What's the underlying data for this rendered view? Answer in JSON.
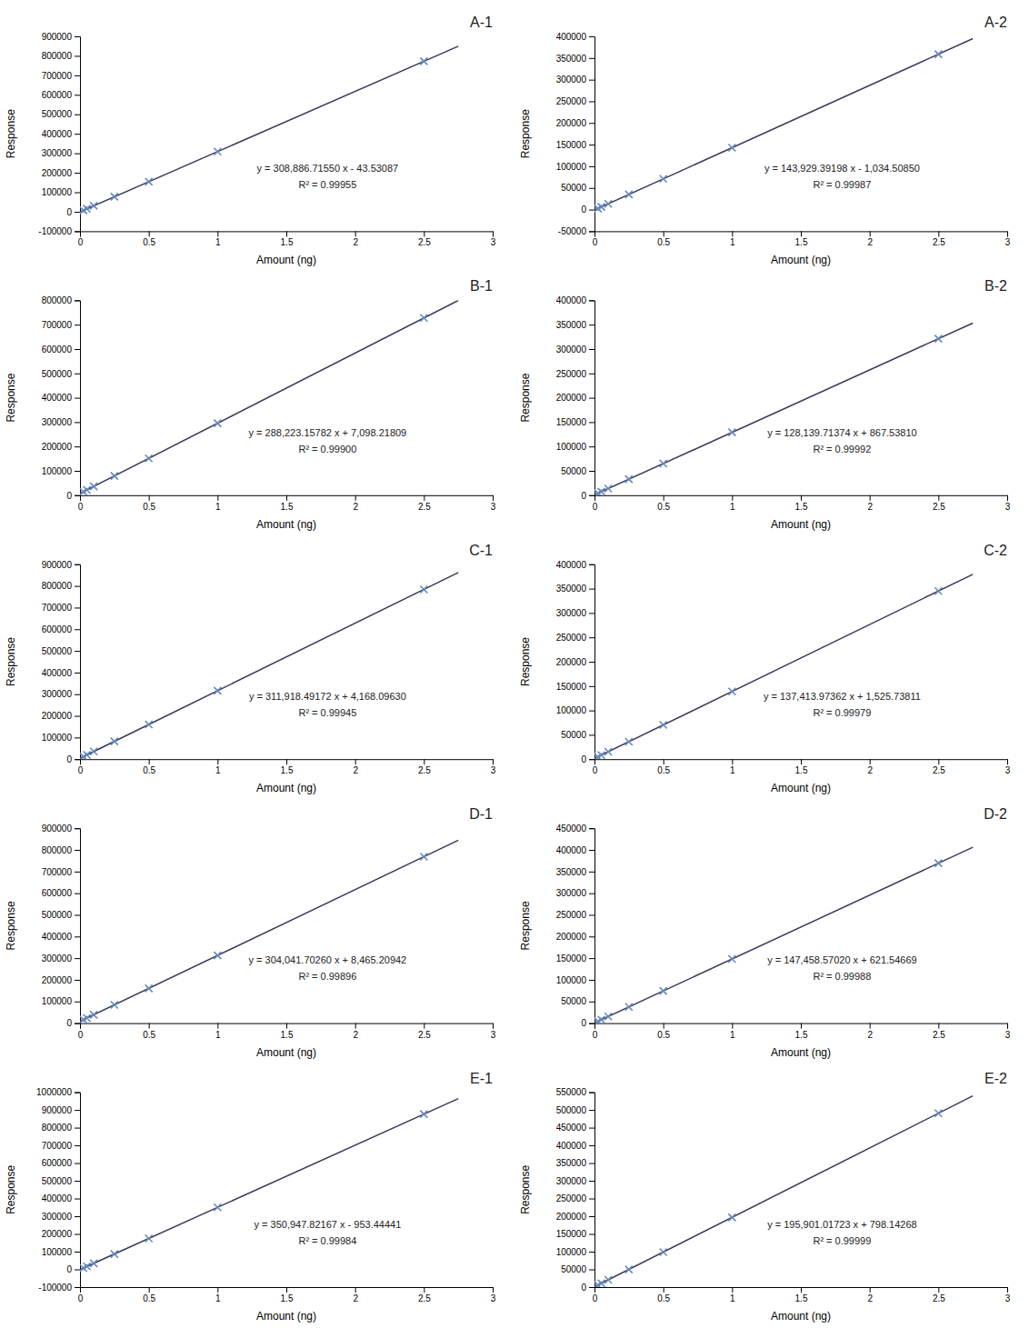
{
  "chart_data": [
    {
      "type": "scatter",
      "title": "A-1",
      "xlabel": "Amount (ng)",
      "ylabel": "Response",
      "annotations": [
        "y = 308,886.71550 x - 43.53087",
        "R² = 0.99955"
      ],
      "xlim": [
        0,
        3
      ],
      "xticks": [
        0,
        0.5,
        1,
        1.5,
        2,
        2.5,
        3
      ],
      "ylim": [
        -100000,
        900000
      ],
      "yticks": [
        -100000,
        0,
        100000,
        200000,
        300000,
        400000,
        500000,
        600000,
        700000,
        800000,
        900000
      ],
      "series": [
        {
          "type": "line",
          "color": "#3a3a5a",
          "x": [
            0,
            2.75
          ],
          "values": [
            -43.53087,
            849394.936755
          ]
        },
        {
          "type": "scatter",
          "marker": "x",
          "color": "#6688bb",
          "x": [
            0.025,
            0.05,
            0.1,
            0.25,
            0.5,
            1.0,
            2.5
          ],
          "values": [
            7678.6370175,
            15400.804905,
            30845.14068,
            77178.148005,
            154399.82688,
            308843.18463,
            772173.25788
          ]
        }
      ]
    },
    {
      "type": "scatter",
      "title": "A-2",
      "xlabel": "Amount (ng)",
      "ylabel": "Response",
      "annotations": [
        "y = 143,929.39198 x - 1,034.50850",
        "R² = 0.99987"
      ],
      "xlim": [
        0,
        3
      ],
      "xticks": [
        0,
        0.5,
        1,
        1.5,
        2,
        2.5,
        3
      ],
      "ylim": [
        -50000,
        400000
      ],
      "yticks": [
        -50000,
        0,
        50000,
        100000,
        150000,
        200000,
        250000,
        300000,
        350000,
        400000
      ],
      "series": [
        {
          "type": "line",
          "color": "#3a3a5a",
          "x": [
            0,
            2.75
          ],
          "values": [
            -1034.5085,
            394771.319445
          ]
        },
        {
          "type": "scatter",
          "marker": "x",
          "color": "#6688bb",
          "x": [
            0.025,
            0.05,
            0.1,
            0.25,
            0.5,
            1.0,
            2.5
          ],
          "values": [
            2563.7262995,
            6161.961099,
            13358.430698,
            34947.839495,
            70930.18749,
            142894.88348,
            358788.97145
          ]
        }
      ]
    },
    {
      "type": "scatter",
      "title": "B-1",
      "xlabel": "Amount (ng)",
      "ylabel": "Response",
      "annotations": [
        "y = 288,223.15782 x + 7,098.21809",
        "R² = 0.99900"
      ],
      "xlim": [
        0,
        3
      ],
      "xticks": [
        0,
        0.5,
        1,
        1.5,
        2,
        2.5,
        3
      ],
      "ylim": [
        0,
        800000
      ],
      "yticks": [
        0,
        100000,
        200000,
        300000,
        400000,
        500000,
        600000,
        700000,
        800000
      ],
      "series": [
        {
          "type": "line",
          "color": "#3a3a5a",
          "x": [
            0,
            2.75
          ],
          "values": [
            7098.21809,
            799711.902095
          ]
        },
        {
          "type": "scatter",
          "marker": "x",
          "color": "#6688bb",
          "x": [
            0.025,
            0.05,
            0.1,
            0.25,
            0.5,
            1.0,
            2.5
          ],
          "values": [
            14303.7970355,
            21509.375981,
            35920.533872,
            79154.007545,
            151209.797,
            295321.37591,
            727656.11264
          ]
        }
      ]
    },
    {
      "type": "scatter",
      "title": "B-2",
      "xlabel": "Amount (ng)",
      "ylabel": "Response",
      "annotations": [
        "y = 128,139.71374 x + 867.53810",
        "R² = 0.99992"
      ],
      "xlim": [
        0,
        3
      ],
      "xticks": [
        0,
        0.5,
        1,
        1.5,
        2,
        2.5,
        3
      ],
      "ylim": [
        0,
        400000
      ],
      "yticks": [
        0,
        50000,
        100000,
        150000,
        200000,
        250000,
        300000,
        350000,
        400000
      ],
      "series": [
        {
          "type": "line",
          "color": "#3a3a5a",
          "x": [
            0,
            2.75
          ],
          "values": [
            867.5381,
            353251.750885
          ]
        },
        {
          "type": "scatter",
          "marker": "x",
          "color": "#6688bb",
          "x": [
            0.025,
            0.05,
            0.1,
            0.25,
            0.5,
            1.0,
            2.5
          ],
          "values": [
            4071.0309435,
            7274.523787,
            13681.509474,
            32902.466535,
            64937.39497,
            129007.25184,
            321216.82245
          ]
        }
      ]
    },
    {
      "type": "scatter",
      "title": "C-1",
      "xlabel": "Amount (ng)",
      "ylabel": "Response",
      "annotations": [
        "y = 311,918.49172 x + 4,168.09630",
        "R² = 0.99945"
      ],
      "xlim": [
        0,
        3
      ],
      "xticks": [
        0,
        0.5,
        1,
        1.5,
        2,
        2.5,
        3
      ],
      "ylim": [
        0,
        900000
      ],
      "yticks": [
        0,
        100000,
        200000,
        300000,
        400000,
        500000,
        600000,
        700000,
        800000,
        900000
      ],
      "series": [
        {
          "type": "line",
          "color": "#3a3a5a",
          "x": [
            0,
            2.75
          ],
          "values": [
            4168.0963,
            861943.94853
          ]
        },
        {
          "type": "scatter",
          "marker": "x",
          "color": "#6688bb",
          "x": [
            0.025,
            0.05,
            0.1,
            0.25,
            0.5,
            1.0,
            2.5
          ],
          "values": [
            11966.058593,
            19764.020886,
            35359.945472,
            82147.71923,
            160127.34216,
            316086.58802,
            783964.3256
          ]
        }
      ]
    },
    {
      "type": "scatter",
      "title": "C-2",
      "xlabel": "Amount (ng)",
      "ylabel": "Response",
      "annotations": [
        "y = 137,413.97362 x + 1,525.73811",
        "R² = 0.99979"
      ],
      "xlim": [
        0,
        3
      ],
      "xticks": [
        0,
        0.5,
        1,
        1.5,
        2,
        2.5,
        3
      ],
      "ylim": [
        0,
        400000
      ],
      "yticks": [
        0,
        50000,
        100000,
        150000,
        200000,
        250000,
        300000,
        350000,
        400000
      ],
      "series": [
        {
          "type": "line",
          "color": "#3a3a5a",
          "x": [
            0,
            2.75
          ],
          "values": [
            1525.73811,
            379414.165565
          ]
        },
        {
          "type": "scatter",
          "marker": "x",
          "color": "#6688bb",
          "x": [
            0.025,
            0.05,
            0.1,
            0.25,
            0.5,
            1.0,
            2.5
          ],
          "values": [
            4961.0874505,
            8396.436791,
            15267.135472,
            35879.231515,
            70232.72492,
            138939.71173,
            345060.67216
          ]
        }
      ]
    },
    {
      "type": "scatter",
      "title": "D-1",
      "xlabel": "Amount (ng)",
      "ylabel": "Response",
      "annotations": [
        "y = 304,041.70260 x + 8,465.20942",
        "R² = 0.99896"
      ],
      "xlim": [
        0,
        3
      ],
      "xticks": [
        0,
        0.5,
        1,
        1.5,
        2,
        2.5,
        3
      ],
      "ylim": [
        0,
        900000
      ],
      "yticks": [
        0,
        100000,
        200000,
        300000,
        400000,
        500000,
        600000,
        700000,
        800000,
        900000
      ],
      "series": [
        {
          "type": "line",
          "color": "#3a3a5a",
          "x": [
            0,
            2.75
          ],
          "values": [
            8465.20942,
            844579.89157
          ]
        },
        {
          "type": "scatter",
          "marker": "x",
          "color": "#6688bb",
          "x": [
            0.025,
            0.05,
            0.1,
            0.25,
            0.5,
            1.0,
            2.5
          ],
          "values": [
            16066.251985,
            23667.29455,
            38869.37968,
            84475.63507,
            160486.06072,
            312506.91202,
            768569.46592
          ]
        }
      ]
    },
    {
      "type": "scatter",
      "title": "D-2",
      "xlabel": "Amount (ng)",
      "ylabel": "Response",
      "annotations": [
        "y = 147,458.57020 x + 621.54669",
        "R² = 0.99988"
      ],
      "xlim": [
        0,
        3
      ],
      "xticks": [
        0,
        0.5,
        1,
        1.5,
        2,
        2.5,
        3
      ],
      "ylim": [
        0,
        450000
      ],
      "yticks": [
        0,
        50000,
        100000,
        150000,
        200000,
        250000,
        300000,
        350000,
        400000,
        450000
      ],
      "series": [
        {
          "type": "line",
          "color": "#3a3a5a",
          "x": [
            0,
            2.75
          ],
          "values": [
            621.54669,
            406132.61474
          ]
        },
        {
          "type": "scatter",
          "marker": "x",
          "color": "#6688bb",
          "x": [
            0.025,
            0.05,
            0.1,
            0.25,
            0.5,
            1.0,
            2.5
          ],
          "values": [
            4308.010945,
            7994.4752,
            15367.40371,
            37486.18924,
            74350.83179,
            148080.11689,
            369267.97219
          ]
        }
      ]
    },
    {
      "type": "scatter",
      "title": "E-1",
      "xlabel": "Amount (ng)",
      "ylabel": "Response",
      "annotations": [
        "y = 350,947.82167 x - 953.44441",
        "R² = 0.99984"
      ],
      "xlim": [
        0,
        3
      ],
      "xticks": [
        0,
        0.5,
        1,
        1.5,
        2,
        2.5,
        3
      ],
      "ylim": [
        -100000,
        1000000
      ],
      "yticks": [
        -100000,
        0,
        100000,
        200000,
        300000,
        400000,
        500000,
        600000,
        700000,
        800000,
        900000,
        1000000
      ],
      "series": [
        {
          "type": "line",
          "color": "#3a3a5a",
          "x": [
            0,
            2.75
          ],
          "values": [
            -953.44441,
            964153.0651825
          ]
        },
        {
          "type": "scatter",
          "marker": "x",
          "color": "#6688bb",
          "x": [
            0.025,
            0.05,
            0.1,
            0.25,
            0.5,
            1.0,
            2.5
          ],
          "values": [
            7820.25113175,
            16593.9466735,
            34141.337757,
            86783.5110075,
            174520.466425,
            349994.37726,
            876416.109765
          ]
        }
      ]
    },
    {
      "type": "scatter",
      "title": "E-2",
      "xlabel": "Amount (ng)",
      "ylabel": "Response",
      "annotations": [
        "y = 195,901.01723 x + 798.14268",
        "R² = 0.99999"
      ],
      "xlim": [
        0,
        3
      ],
      "xticks": [
        0,
        0.5,
        1,
        1.5,
        2,
        2.5,
        3
      ],
      "ylim": [
        0,
        550000
      ],
      "yticks": [
        0,
        50000,
        100000,
        150000,
        200000,
        250000,
        300000,
        350000,
        400000,
        450000,
        500000,
        550000
      ],
      "series": [
        {
          "type": "line",
          "color": "#3a3a5a",
          "x": [
            0,
            2.75
          ],
          "values": [
            798.14268,
            539525.9400625
          ]
        },
        {
          "type": "scatter",
          "marker": "x",
          "color": "#6688bb",
          "x": [
            0.025,
            0.05,
            0.1,
            0.25,
            0.5,
            1.0,
            2.5
          ],
          "values": [
            5695.66811075,
            10593.1935415,
            20388.244403,
            49773.3969875,
            98748.651295,
            196699.15991,
            490550.685755
          ]
        }
      ]
    }
  ]
}
